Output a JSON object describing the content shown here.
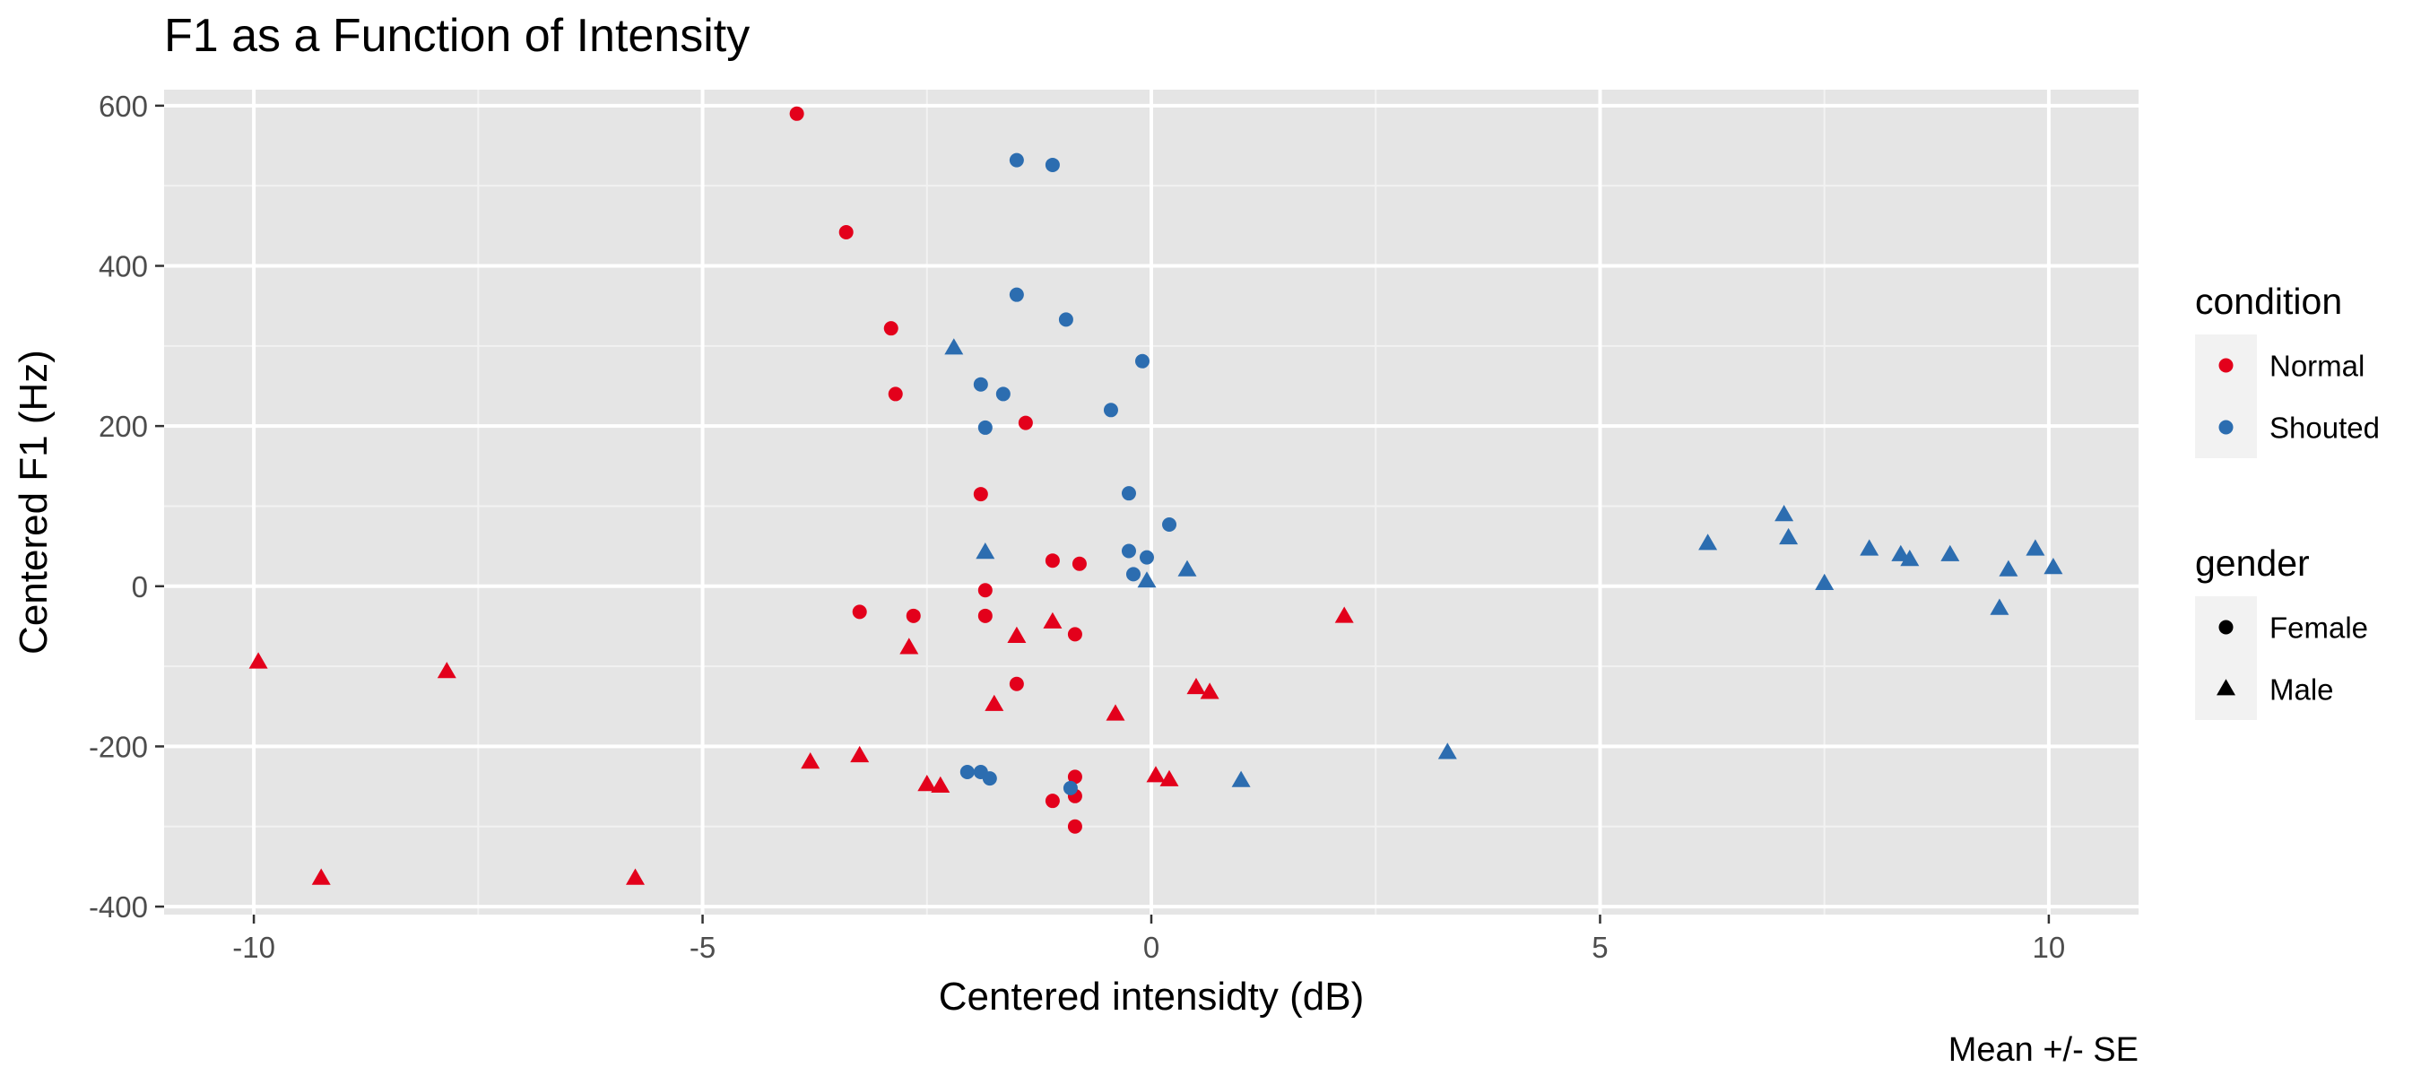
{
  "chart_data": {
    "type": "scatter",
    "title": "F1 as a Function of Intensity",
    "xlabel": "Centered intensidty (dB)",
    "ylabel": "Centered F1 (Hz)",
    "caption": "Mean +/- SE",
    "xlim": [
      -11,
      11
    ],
    "ylim": [
      -410,
      620
    ],
    "x_ticks": [
      -10,
      -5,
      0,
      5,
      10
    ],
    "x_tick_labels": [
      "-10",
      "-5",
      "0",
      "5",
      "10"
    ],
    "y_ticks": [
      -400,
      -200,
      0,
      200,
      400,
      600
    ],
    "y_tick_labels": [
      "-400",
      "-200",
      "0",
      "200",
      "400",
      "600"
    ],
    "grid": true,
    "legend_placement": "right",
    "colors": {
      "Normal": "#e3001b",
      "Shouted": "#2c6db0",
      "panel_bg": "#e5e5e5",
      "grid": "#ffffff"
    },
    "legends": [
      {
        "title": "condition",
        "kind": "color",
        "entries": [
          {
            "label": "Normal",
            "key": "Normal"
          },
          {
            "label": "Shouted",
            "key": "Shouted"
          }
        ]
      },
      {
        "title": "gender",
        "kind": "shape",
        "entries": [
          {
            "label": "Female",
            "key": "circle"
          },
          {
            "label": "Male",
            "key": "triangle"
          }
        ]
      }
    ],
    "series": [
      {
        "condition": "Normal",
        "gender": "Female",
        "points": [
          [
            -3.95,
            590
          ],
          [
            -3.4,
            442
          ],
          [
            -2.9,
            322
          ],
          [
            -2.85,
            240
          ],
          [
            -1.4,
            204
          ],
          [
            -1.9,
            115
          ],
          [
            -1.1,
            32
          ],
          [
            -0.8,
            28
          ],
          [
            -1.85,
            -5
          ],
          [
            -3.25,
            -32
          ],
          [
            -2.65,
            -37
          ],
          [
            -1.85,
            -37
          ],
          [
            -0.85,
            -60
          ],
          [
            -1.5,
            -122
          ],
          [
            -0.85,
            -238
          ],
          [
            -1.1,
            -268
          ],
          [
            -0.85,
            -262
          ],
          [
            -0.85,
            -300
          ]
        ]
      },
      {
        "condition": "Normal",
        "gender": "Male",
        "points": [
          [
            -9.95,
            -95
          ],
          [
            -7.85,
            -107
          ],
          [
            -9.25,
            -365
          ],
          [
            -5.75,
            -365
          ],
          [
            -3.8,
            -220
          ],
          [
            -3.25,
            -212
          ],
          [
            -2.7,
            -77
          ],
          [
            -2.5,
            -248
          ],
          [
            -2.35,
            -250
          ],
          [
            -1.75,
            -148
          ],
          [
            -1.5,
            -63
          ],
          [
            -1.1,
            -45
          ],
          [
            -0.4,
            -160
          ],
          [
            0.5,
            -127
          ],
          [
            0.65,
            -133
          ],
          [
            0.05,
            -237
          ],
          [
            0.2,
            -242
          ],
          [
            2.15,
            -38
          ]
        ]
      },
      {
        "condition": "Shouted",
        "gender": "Female",
        "points": [
          [
            -1.5,
            532
          ],
          [
            -1.1,
            526
          ],
          [
            -1.5,
            364
          ],
          [
            -0.95,
            333
          ],
          [
            -0.1,
            281
          ],
          [
            -1.9,
            252
          ],
          [
            -1.65,
            240
          ],
          [
            -0.45,
            220
          ],
          [
            -1.85,
            198
          ],
          [
            -0.25,
            116
          ],
          [
            0.2,
            77
          ],
          [
            -0.25,
            44
          ],
          [
            -0.05,
            36
          ],
          [
            -0.2,
            15
          ],
          [
            -2.05,
            -232
          ],
          [
            -1.9,
            -232
          ],
          [
            -1.8,
            -240
          ],
          [
            -0.9,
            -252
          ]
        ]
      },
      {
        "condition": "Shouted",
        "gender": "Male",
        "points": [
          [
            -2.2,
            297
          ],
          [
            -1.85,
            42
          ],
          [
            -0.05,
            6
          ],
          [
            0.4,
            20
          ],
          [
            1.0,
            -243
          ],
          [
            3.3,
            -208
          ],
          [
            6.2,
            53
          ],
          [
            7.05,
            89
          ],
          [
            7.1,
            60
          ],
          [
            7.5,
            3
          ],
          [
            8.0,
            46
          ],
          [
            8.35,
            39
          ],
          [
            8.45,
            33
          ],
          [
            8.9,
            39
          ],
          [
            9.45,
            -28
          ],
          [
            9.55,
            20
          ],
          [
            9.85,
            46
          ],
          [
            10.05,
            23
          ]
        ]
      }
    ]
  }
}
